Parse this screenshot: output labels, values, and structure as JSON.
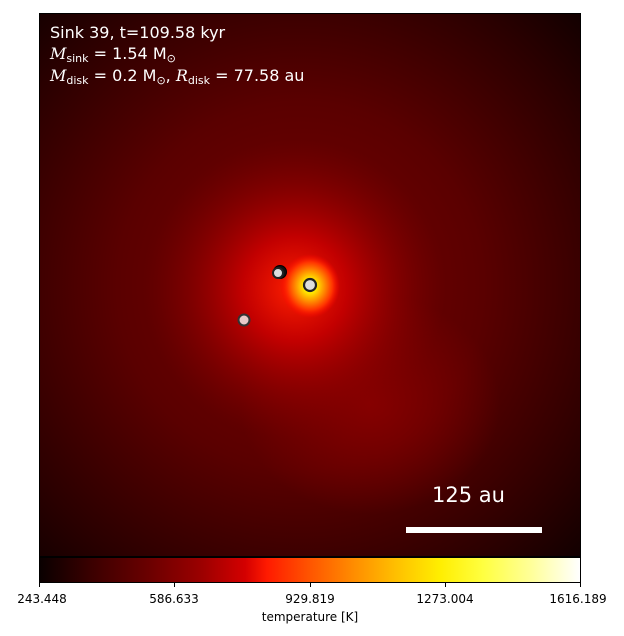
{
  "annotation": {
    "line1": "Sink 39, t=109.58 kyr",
    "msink_symbol": "M",
    "msink_sub": "sink",
    "msink_value": " = 1.54 M",
    "msink_unit_sub": "⊙",
    "mdisk_symbol": "M",
    "mdisk_sub": "disk",
    "mdisk_value": " = 0.2 M",
    "mdisk_unit_sub": "⊙",
    "rdisk_separator": ", ",
    "rdisk_symbol": "R",
    "rdisk_sub": "disk",
    "rdisk_value": " = 77.58 au"
  },
  "scalebar": {
    "label": "125 au"
  },
  "colorbar": {
    "ticks": [
      "243.448",
      "586.633",
      "929.819",
      "1273.004",
      "1616.189"
    ],
    "label": "temperature [K]",
    "colormap": "hot",
    "range": [
      243.448,
      1616.189
    ]
  },
  "sinks": [
    {
      "name": "sink-a",
      "color": "#dddddd"
    },
    {
      "name": "sink-b",
      "color": "#dddddd"
    },
    {
      "name": "sink-c",
      "color": "#dddddd"
    },
    {
      "name": "sink-d",
      "color": "#dddddd"
    }
  ]
}
